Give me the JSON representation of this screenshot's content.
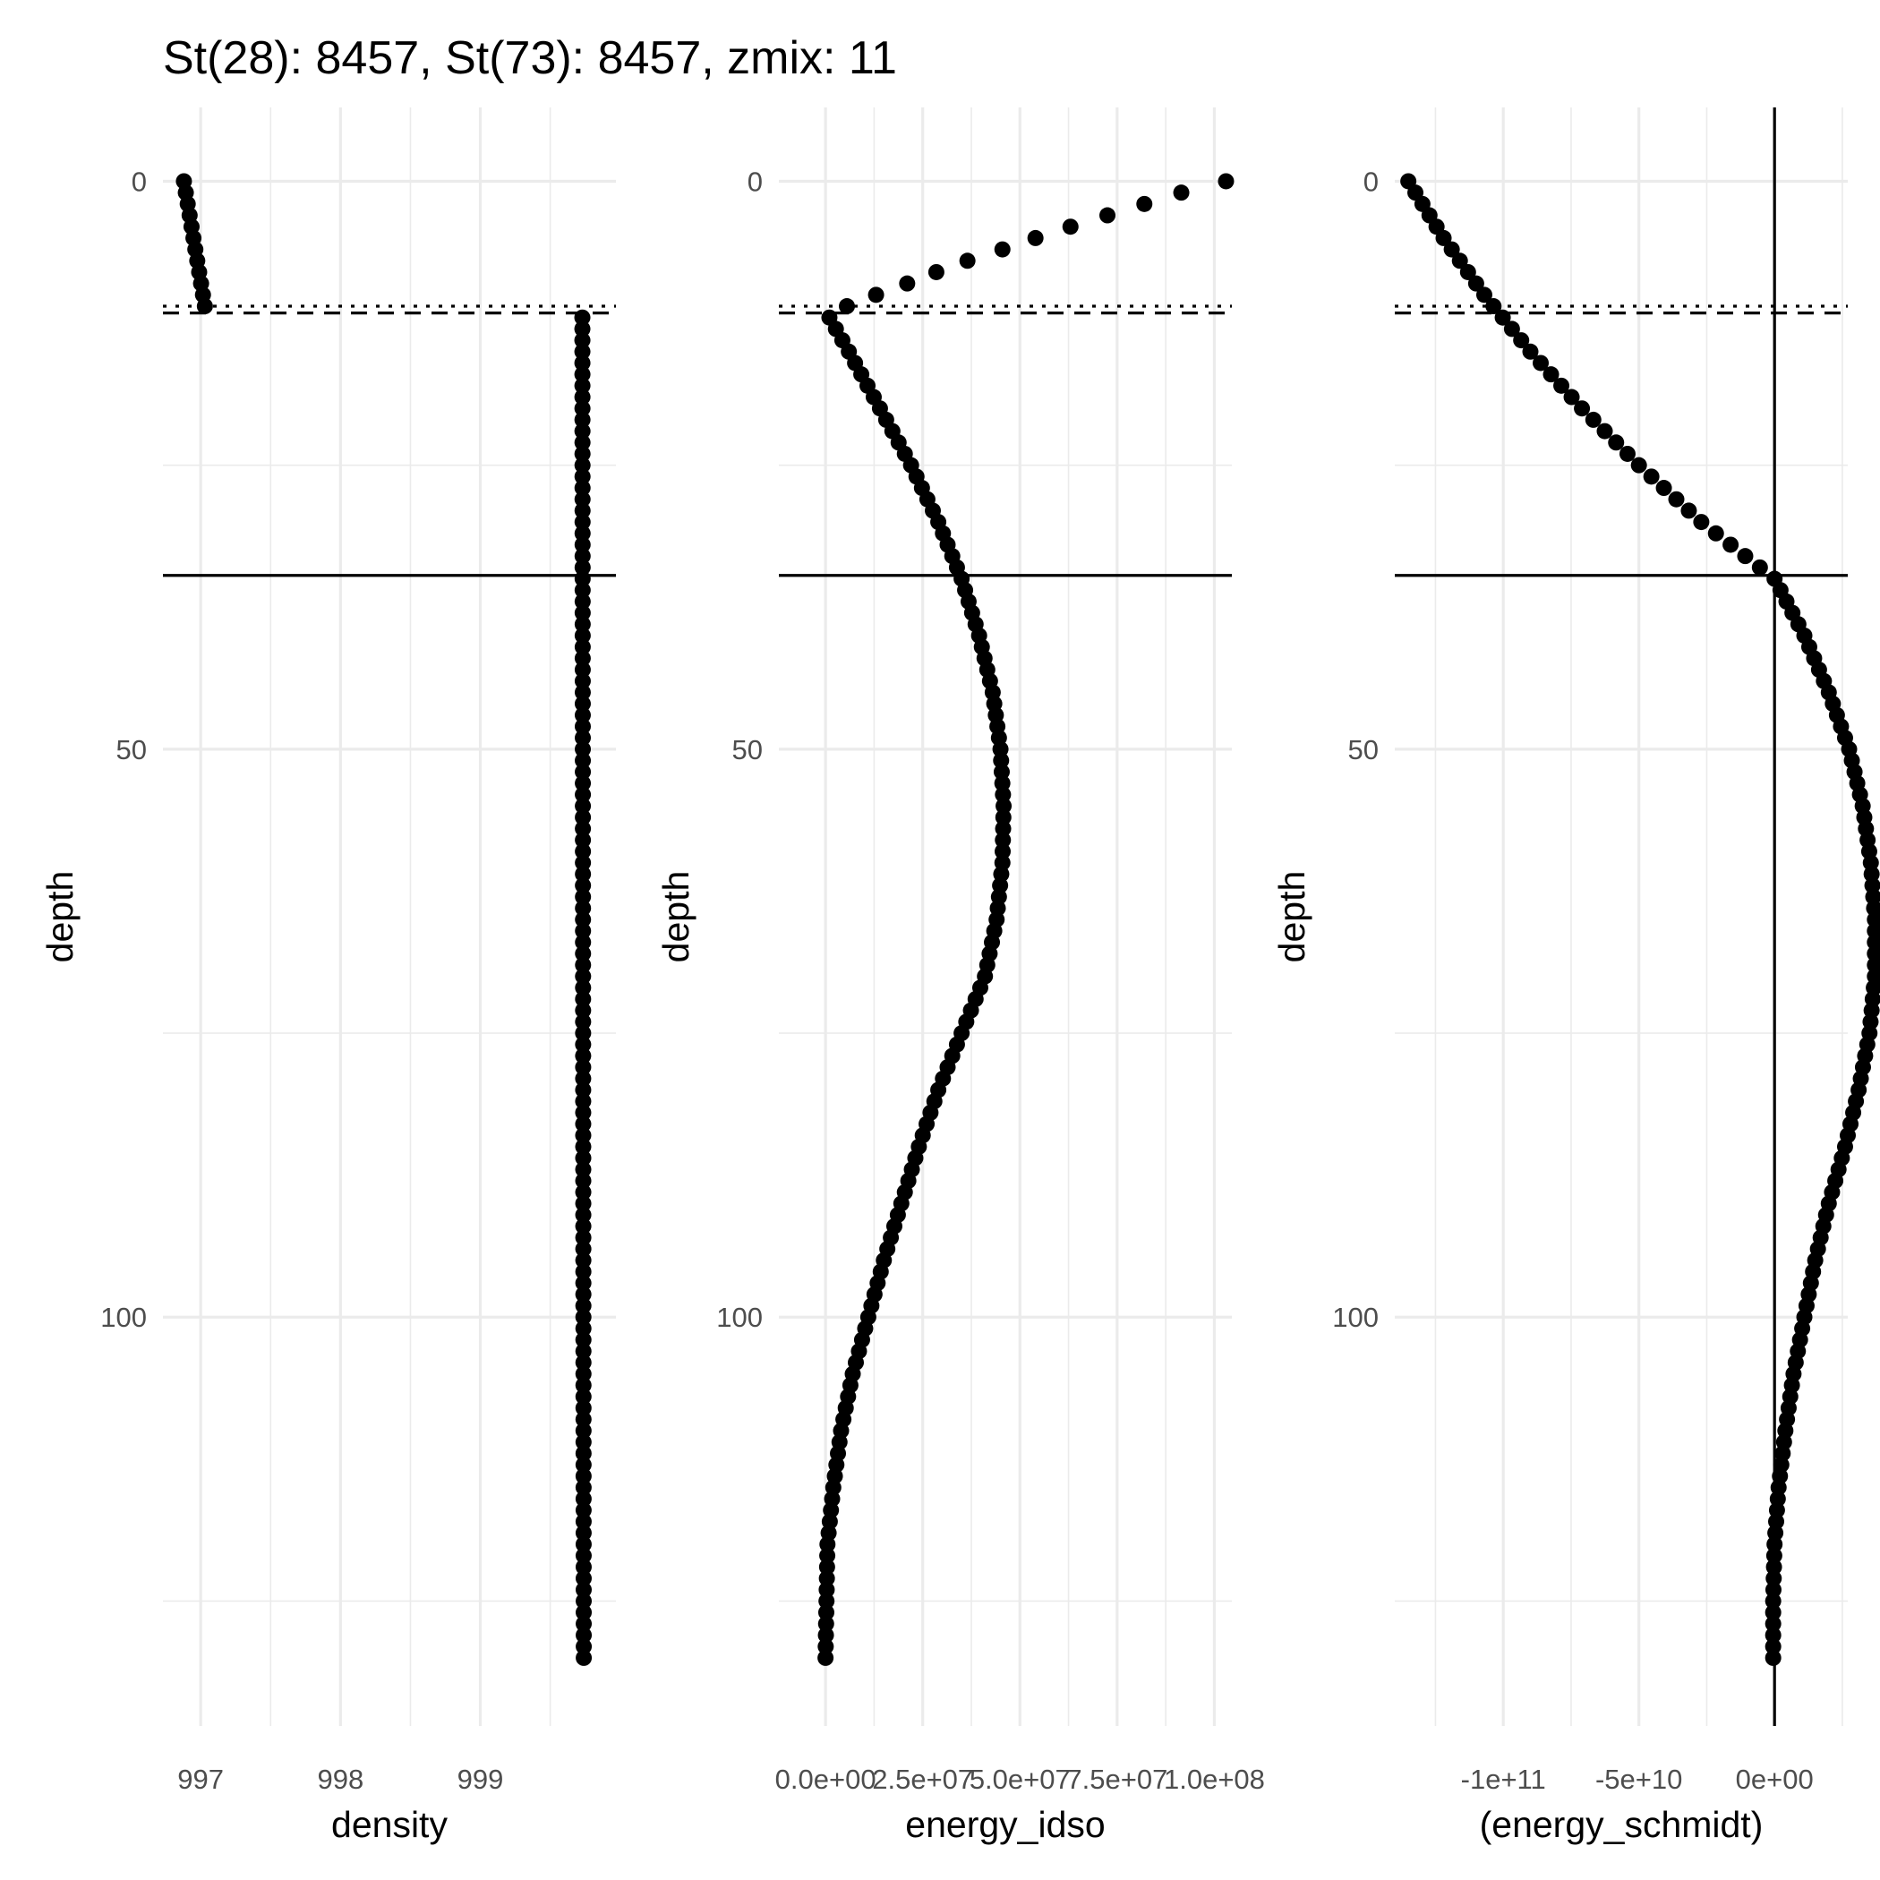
{
  "figure": {
    "title": "St(28): 8457, St(73): 8457, zmix: 11"
  },
  "chart_data": [
    {
      "type": "scatter",
      "xlabel": "density",
      "ylabel": "depth",
      "y_reversed": true,
      "xlim": [
        996.73,
        999.97
      ],
      "ylim": [
        -6.5,
        136.0
      ],
      "xticks": [
        {
          "value": 997,
          "label": "997"
        },
        {
          "value": 998,
          "label": "998"
        },
        {
          "value": 999,
          "label": "999"
        }
      ],
      "yticks": [
        {
          "value": 0,
          "label": "0"
        },
        {
          "value": 50,
          "label": "50"
        },
        {
          "value": 100,
          "label": "100"
        }
      ],
      "hlines": [
        {
          "y": 11,
          "style": "dotted"
        },
        {
          "y": 11.6,
          "style": "dashed"
        },
        {
          "y": 34.7,
          "style": "solid"
        }
      ],
      "vlines": [],
      "profile": {
        "depth_start": 0,
        "depth_end": 130,
        "depth_step": 1,
        "segments": [
          {
            "from": 0,
            "to": 11,
            "x_start": 996.88,
            "x_end": 997.03,
            "shape": "linear"
          },
          {
            "from": 12,
            "to": 130,
            "x_start": 999.73,
            "x_end": 999.74,
            "shape": "linear"
          }
        ]
      }
    },
    {
      "type": "scatter",
      "xlabel": "energy_idso",
      "ylabel": "depth",
      "y_reversed": true,
      "xlim": [
        -12000000,
        104500000
      ],
      "ylim": [
        -6.5,
        136.0
      ],
      "xticks": [
        {
          "value": 0,
          "label": "0.0e+00"
        },
        {
          "value": 25000000,
          "label": "2.5e+07"
        },
        {
          "value": 50000000,
          "label": "5.0e+07"
        },
        {
          "value": 75000000,
          "label": "7.5e+07"
        },
        {
          "value": 100000000,
          "label": "1.0e+08"
        }
      ],
      "yticks": [
        {
          "value": 0,
          "label": "0"
        },
        {
          "value": 50,
          "label": "50"
        },
        {
          "value": 100,
          "label": "100"
        }
      ],
      "hlines": [
        {
          "y": 11,
          "style": "dotted"
        },
        {
          "y": 11.6,
          "style": "dashed"
        },
        {
          "y": 34.7,
          "style": "solid"
        }
      ],
      "vlines": [],
      "points": [
        {
          "depth": 0,
          "value": 103000000
        },
        {
          "depth": 1,
          "value": 91500000
        },
        {
          "depth": 2,
          "value": 82000000
        },
        {
          "depth": 3,
          "value": 72500000
        },
        {
          "depth": 4,
          "value": 63000000
        },
        {
          "depth": 5,
          "value": 54000000
        },
        {
          "depth": 6,
          "value": 45500000
        },
        {
          "depth": 7,
          "value": 36500000
        },
        {
          "depth": 8,
          "value": 28500000
        },
        {
          "depth": 9,
          "value": 21000000
        },
        {
          "depth": 10,
          "value": 13000000
        },
        {
          "depth": 11,
          "value": 5500000
        }
      ],
      "profile": {
        "depth_start": 12,
        "depth_end": 130,
        "depth_step": 1,
        "knots": [
          {
            "depth": 12,
            "value": 1000000
          },
          {
            "depth": 15,
            "value": 6000000
          },
          {
            "depth": 20,
            "value": 14000000
          },
          {
            "depth": 25,
            "value": 22000000
          },
          {
            "depth": 30,
            "value": 29000000
          },
          {
            "depth": 35,
            "value": 35000000
          },
          {
            "depth": 40,
            "value": 39500000
          },
          {
            "depth": 45,
            "value": 43000000
          },
          {
            "depth": 50,
            "value": 45000000
          },
          {
            "depth": 55,
            "value": 45800000
          },
          {
            "depth": 60,
            "value": 45500000
          },
          {
            "depth": 65,
            "value": 44000000
          },
          {
            "depth": 70,
            "value": 41000000
          },
          {
            "depth": 75,
            "value": 35000000
          },
          {
            "depth": 80,
            "value": 29000000
          },
          {
            "depth": 85,
            "value": 24000000
          },
          {
            "depth": 90,
            "value": 19500000
          },
          {
            "depth": 95,
            "value": 15000000
          },
          {
            "depth": 100,
            "value": 11000000
          },
          {
            "depth": 105,
            "value": 7000000
          },
          {
            "depth": 110,
            "value": 4000000
          },
          {
            "depth": 115,
            "value": 2000000
          },
          {
            "depth": 120,
            "value": 500000
          },
          {
            "depth": 130,
            "value": 0
          }
        ]
      }
    },
    {
      "type": "scatter",
      "xlabel": "(energy_schmidt)",
      "ylabel": "depth",
      "y_reversed": true,
      "xlim": [
        -140000000000,
        27000000000
      ],
      "ylim": [
        -6.5,
        136.0
      ],
      "xticks": [
        {
          "value": -100000000000,
          "label": "-1e+11"
        },
        {
          "value": -50000000000,
          "label": "-5e+10"
        },
        {
          "value": 0,
          "label": "0e+00"
        }
      ],
      "yticks": [
        {
          "value": 0,
          "label": "0"
        },
        {
          "value": 50,
          "label": "50"
        },
        {
          "value": 100,
          "label": "100"
        }
      ],
      "hlines": [
        {
          "y": 11,
          "style": "dotted"
        },
        {
          "y": 11.6,
          "style": "dashed"
        },
        {
          "y": 34.7,
          "style": "solid"
        }
      ],
      "vlines": [
        {
          "x": 0,
          "style": "solid"
        }
      ],
      "profile": {
        "depth_start": 0,
        "depth_end": 130,
        "depth_step": 1,
        "knots": [
          {
            "depth": 0,
            "value": -135000000000
          },
          {
            "depth": 5,
            "value": -122000000000
          },
          {
            "depth": 10,
            "value": -107000000000
          },
          {
            "depth": 15,
            "value": -90000000000
          },
          {
            "depth": 20,
            "value": -71000000000
          },
          {
            "depth": 25,
            "value": -50000000000
          },
          {
            "depth": 30,
            "value": -27000000000
          },
          {
            "depth": 35,
            "value": 0
          },
          {
            "depth": 40,
            "value": 11000000000
          },
          {
            "depth": 45,
            "value": 20000000000
          },
          {
            "depth": 50,
            "value": 27500000000
          },
          {
            "depth": 55,
            "value": 32500000000
          },
          {
            "depth": 60,
            "value": 35500000000
          },
          {
            "depth": 65,
            "value": 37000000000
          },
          {
            "depth": 70,
            "value": 37000000000
          },
          {
            "depth": 75,
            "value": 35000000000
          },
          {
            "depth": 80,
            "value": 31000000000
          },
          {
            "depth": 85,
            "value": 26000000000
          },
          {
            "depth": 90,
            "value": 20000000000
          },
          {
            "depth": 95,
            "value": 15000000000
          },
          {
            "depth": 100,
            "value": 11000000000
          },
          {
            "depth": 105,
            "value": 7000000000
          },
          {
            "depth": 110,
            "value": 4000000000
          },
          {
            "depth": 115,
            "value": 1500000000
          },
          {
            "depth": 120,
            "value": 0
          },
          {
            "depth": 125,
            "value": -500000000
          },
          {
            "depth": 130,
            "value": -500000000
          }
        ]
      }
    }
  ]
}
